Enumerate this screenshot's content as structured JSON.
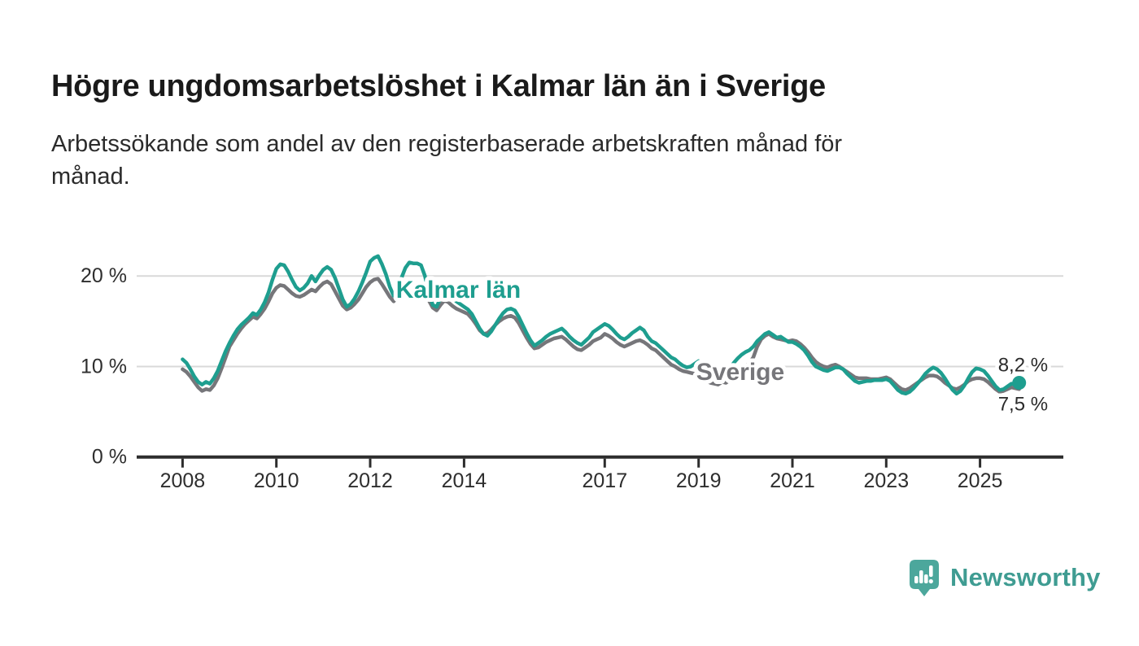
{
  "header": {
    "title": "Högre ungdomsarbetslöshet i Kalmar län än i Sverige",
    "subtitle_lines": [
      "Arbetssökande som andel av den registerbaserade arbetskraften månad för",
      "månad."
    ]
  },
  "colors": {
    "background": "#FFFFFF",
    "title_text": "#1A1A1A",
    "subtitle_text": "#2B2B2B",
    "grid": "#D9D9D9",
    "axis": "#2D2D2D",
    "axis_text": "#2E2E2E",
    "end_label_text": "#2B2B2B",
    "halo": "#FFFFFF",
    "kalmar_teal": "#1E9E8F",
    "sverige_gray": "#76767A",
    "logo_icon": "#4CA79C",
    "logo_text": "#3F9C92"
  },
  "chart_data": {
    "type": "line",
    "x_unit": "month",
    "x_start": "2008-01",
    "x_end": "2025-11",
    "ylim": [
      0,
      23
    ],
    "grid": true,
    "y_ticks": [
      {
        "value": 0,
        "label": "0 %"
      },
      {
        "value": 10,
        "label": "10 %"
      },
      {
        "value": 20,
        "label": "20 %"
      }
    ],
    "x_ticks": [
      2008,
      2010,
      2012,
      2014,
      2017,
      2019,
      2021,
      2023,
      2025
    ],
    "series": [
      {
        "name": "Sverige",
        "color": "#76767A",
        "end_label": "7,5 %",
        "end_dot": false,
        "label": {
          "text": "Sverige",
          "year": 2018.95,
          "value": 8.5
        },
        "values_by_year": {
          "2008": [
            9.7,
            9.4,
            8.9,
            8.3,
            7.7,
            7.3,
            7.5,
            7.4,
            7.9,
            8.7,
            9.8,
            11.0
          ],
          "2009": [
            12.2,
            12.9,
            13.6,
            14.2,
            14.7,
            15.1,
            15.5,
            15.3,
            15.8,
            16.4,
            17.2,
            18.1
          ],
          "2010": [
            18.7,
            19.0,
            18.9,
            18.5,
            18.1,
            17.8,
            17.7,
            17.9,
            18.2,
            18.5,
            18.3,
            18.8
          ],
          "2011": [
            19.2,
            19.4,
            19.1,
            18.3,
            17.5,
            16.7,
            16.3,
            16.5,
            16.9,
            17.4,
            18.1,
            18.8
          ],
          "2012": [
            19.3,
            19.6,
            19.7,
            19.1,
            18.4,
            17.7,
            17.2,
            17.8,
            18.3,
            18.9,
            19.3,
            19.2
          ],
          "2013": [
            19.2,
            19.0,
            18.3,
            17.3,
            16.5,
            16.2,
            16.8,
            17.3,
            17.1,
            16.7,
            16.4,
            16.2
          ],
          "2014": [
            16.0,
            15.8,
            15.3,
            14.7,
            14.0,
            13.6,
            13.7,
            14.1,
            14.6,
            15.0,
            15.3,
            15.5
          ],
          "2015": [
            15.6,
            15.4,
            14.8,
            14.0,
            13.2,
            12.5,
            12.0,
            12.1,
            12.4,
            12.7,
            12.9,
            13.1
          ],
          "2016": [
            13.2,
            13.3,
            13.0,
            12.6,
            12.2,
            11.9,
            11.8,
            12.1,
            12.4,
            12.8,
            13.0,
            13.2
          ],
          "2017": [
            13.6,
            13.4,
            13.1,
            12.7,
            12.4,
            12.2,
            12.4,
            12.6,
            12.8,
            12.9,
            12.7,
            12.4
          ],
          "2018": [
            12.0,
            11.8,
            11.4,
            11.0,
            10.6,
            10.2,
            10.0,
            9.7,
            9.5,
            9.4,
            9.3,
            9.2
          ],
          "2019": [
            9.0,
            8.7,
            8.4,
            8.2,
            8.1,
            8.0,
            8.3,
            8.2,
            8.5,
            8.9,
            9.3,
            9.7
          ],
          "2020": [
            10.0,
            10.4,
            11.0,
            12.2,
            13.0,
            13.4,
            13.6,
            13.3,
            13.1,
            13.0,
            12.9,
            12.8
          ],
          "2021": [
            12.9,
            12.8,
            12.5,
            12.1,
            11.6,
            11.0,
            10.5,
            10.2,
            10.0,
            9.9,
            10.1,
            10.2
          ],
          "2022": [
            10.0,
            9.7,
            9.4,
            9.1,
            8.8,
            8.7,
            8.7,
            8.7,
            8.6,
            8.6,
            8.6,
            8.7
          ],
          "2023": [
            8.8,
            8.6,
            8.2,
            7.8,
            7.5,
            7.4,
            7.6,
            7.9,
            8.2,
            8.5,
            8.8,
            9.0
          ],
          "2024": [
            9.0,
            8.9,
            8.6,
            8.2,
            7.9,
            7.6,
            7.5,
            7.7,
            8.0,
            8.4,
            8.6,
            8.7
          ],
          "2025": [
            8.7,
            8.6,
            8.3,
            7.9,
            7.5,
            7.2,
            7.3,
            7.5,
            7.7,
            7.6,
            7.5
          ]
        }
      },
      {
        "name": "Kalmar län",
        "color": "#1E9E8F",
        "end_label": "8,2 %",
        "end_dot": true,
        "label": {
          "text": "Kalmar län",
          "year": 2012.55,
          "value": 17.6
        },
        "values_by_year": {
          "2008": [
            10.8,
            10.4,
            9.7,
            8.9,
            8.3,
            8.0,
            8.3,
            8.1,
            8.7,
            9.5,
            10.6,
            11.7
          ],
          "2009": [
            12.6,
            13.4,
            14.1,
            14.6,
            15.0,
            15.4,
            15.9,
            15.7,
            16.3,
            17.1,
            18.2,
            19.6
          ],
          "2010": [
            20.8,
            21.3,
            21.2,
            20.5,
            19.6,
            18.8,
            18.4,
            18.7,
            19.2,
            20.0,
            19.4,
            20.1
          ],
          "2011": [
            20.7,
            21.0,
            20.7,
            19.8,
            18.6,
            17.4,
            16.6,
            16.9,
            17.5,
            18.3,
            19.3,
            20.4
          ],
          "2012": [
            21.6,
            22.0,
            22.2,
            21.3,
            20.2,
            18.8,
            17.8,
            18.6,
            19.8,
            20.9,
            21.5,
            21.4
          ],
          "2013": [
            21.4,
            21.2,
            20.0,
            18.2,
            16.8,
            16.6,
            17.6,
            18.4,
            18.2,
            17.6,
            17.2,
            16.9
          ],
          "2014": [
            16.6,
            16.3,
            15.8,
            15.0,
            14.2,
            13.6,
            13.4,
            13.9,
            14.6,
            15.3,
            15.9,
            16.3
          ],
          "2015": [
            16.4,
            16.2,
            15.5,
            14.6,
            13.7,
            12.9,
            12.3,
            12.6,
            12.9,
            13.3,
            13.6,
            13.8
          ],
          "2016": [
            14.0,
            14.2,
            13.8,
            13.3,
            12.9,
            12.6,
            12.4,
            12.8,
            13.2,
            13.8,
            14.1,
            14.4
          ],
          "2017": [
            14.7,
            14.5,
            14.1,
            13.6,
            13.2,
            13.0,
            13.3,
            13.7,
            14.0,
            14.3,
            14.0,
            13.3
          ],
          "2018": [
            12.8,
            12.6,
            12.2,
            11.8,
            11.4,
            11.0,
            10.8,
            10.4,
            10.1,
            9.9,
            10.0,
            10.3
          ],
          "2019": [
            10.6,
            10.4,
            10.0,
            9.7,
            9.4,
            9.2,
            9.5,
            9.4,
            9.8,
            10.4,
            10.9,
            11.3
          ],
          "2020": [
            11.6,
            11.8,
            12.2,
            12.8,
            13.2,
            13.6,
            13.8,
            13.5,
            13.2,
            13.3,
            13.0,
            12.7
          ],
          "2021": [
            12.7,
            12.5,
            12.2,
            11.8,
            11.2,
            10.5,
            10.0,
            9.8,
            9.6,
            9.5,
            9.7,
            9.9
          ],
          "2022": [
            9.9,
            9.7,
            9.2,
            8.8,
            8.4,
            8.2,
            8.3,
            8.4,
            8.4,
            8.5,
            8.5,
            8.5
          ],
          "2023": [
            8.6,
            8.4,
            7.9,
            7.4,
            7.1,
            7.0,
            7.2,
            7.6,
            8.1,
            8.6,
            9.2,
            9.6
          ],
          "2024": [
            9.9,
            9.7,
            9.3,
            8.7,
            8.0,
            7.4,
            7.0,
            7.3,
            7.9,
            8.7,
            9.4,
            9.8
          ],
          "2025": [
            9.7,
            9.5,
            9.0,
            8.4,
            7.8,
            7.4,
            7.5,
            7.8,
            8.1,
            8.0,
            8.2
          ]
        }
      }
    ]
  },
  "footer": {
    "brand": "Newsworthy"
  }
}
